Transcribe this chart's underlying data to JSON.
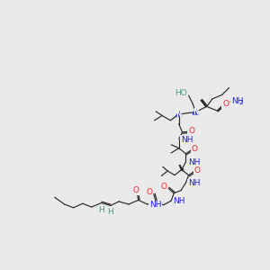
{
  "bg_color": "#eaeaea",
  "bond_color": "#2a2a2a",
  "O_color": "#e8292a",
  "N_color": "#2020dd",
  "H_color": "#4a9a88",
  "figsize": [
    3.0,
    3.0
  ],
  "dpi": 100,
  "xlim": [
    0,
    300
  ],
  "ylim": [
    0,
    300
  ]
}
